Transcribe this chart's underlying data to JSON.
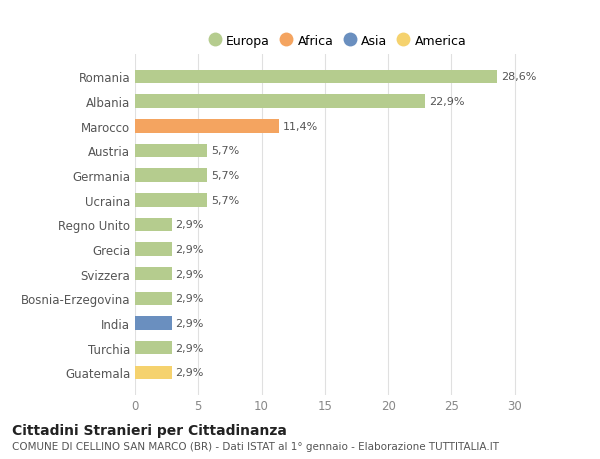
{
  "categories": [
    "Romania",
    "Albania",
    "Marocco",
    "Austria",
    "Germania",
    "Ucraina",
    "Regno Unito",
    "Grecia",
    "Svizzera",
    "Bosnia-Erzegovina",
    "India",
    "Turchia",
    "Guatemala"
  ],
  "values": [
    28.6,
    22.9,
    11.4,
    5.7,
    5.7,
    5.7,
    2.9,
    2.9,
    2.9,
    2.9,
    2.9,
    2.9,
    2.9
  ],
  "labels": [
    "28,6%",
    "22,9%",
    "11,4%",
    "5,7%",
    "5,7%",
    "5,7%",
    "2,9%",
    "2,9%",
    "2,9%",
    "2,9%",
    "2,9%",
    "2,9%",
    "2,9%"
  ],
  "colors": [
    "#b5cc8e",
    "#b5cc8e",
    "#f4a460",
    "#b5cc8e",
    "#b5cc8e",
    "#b5cc8e",
    "#b5cc8e",
    "#b5cc8e",
    "#b5cc8e",
    "#b5cc8e",
    "#6a8fbf",
    "#b5cc8e",
    "#f5d26e"
  ],
  "legend_labels": [
    "Europa",
    "Africa",
    "Asia",
    "America"
  ],
  "legend_colors": [
    "#b5cc8e",
    "#f4a460",
    "#6a8fbf",
    "#f5d26e"
  ],
  "title": "Cittadini Stranieri per Cittadinanza",
  "subtitle": "COMUNE DI CELLINO SAN MARCO (BR) - Dati ISTAT al 1° gennaio - Elaborazione TUTTITALIA.IT",
  "xlim": [
    0,
    32
  ],
  "xticks": [
    0,
    5,
    10,
    15,
    20,
    25,
    30
  ],
  "background_color": "#ffffff",
  "grid_color": "#e0e0e0",
  "bar_height": 0.55
}
